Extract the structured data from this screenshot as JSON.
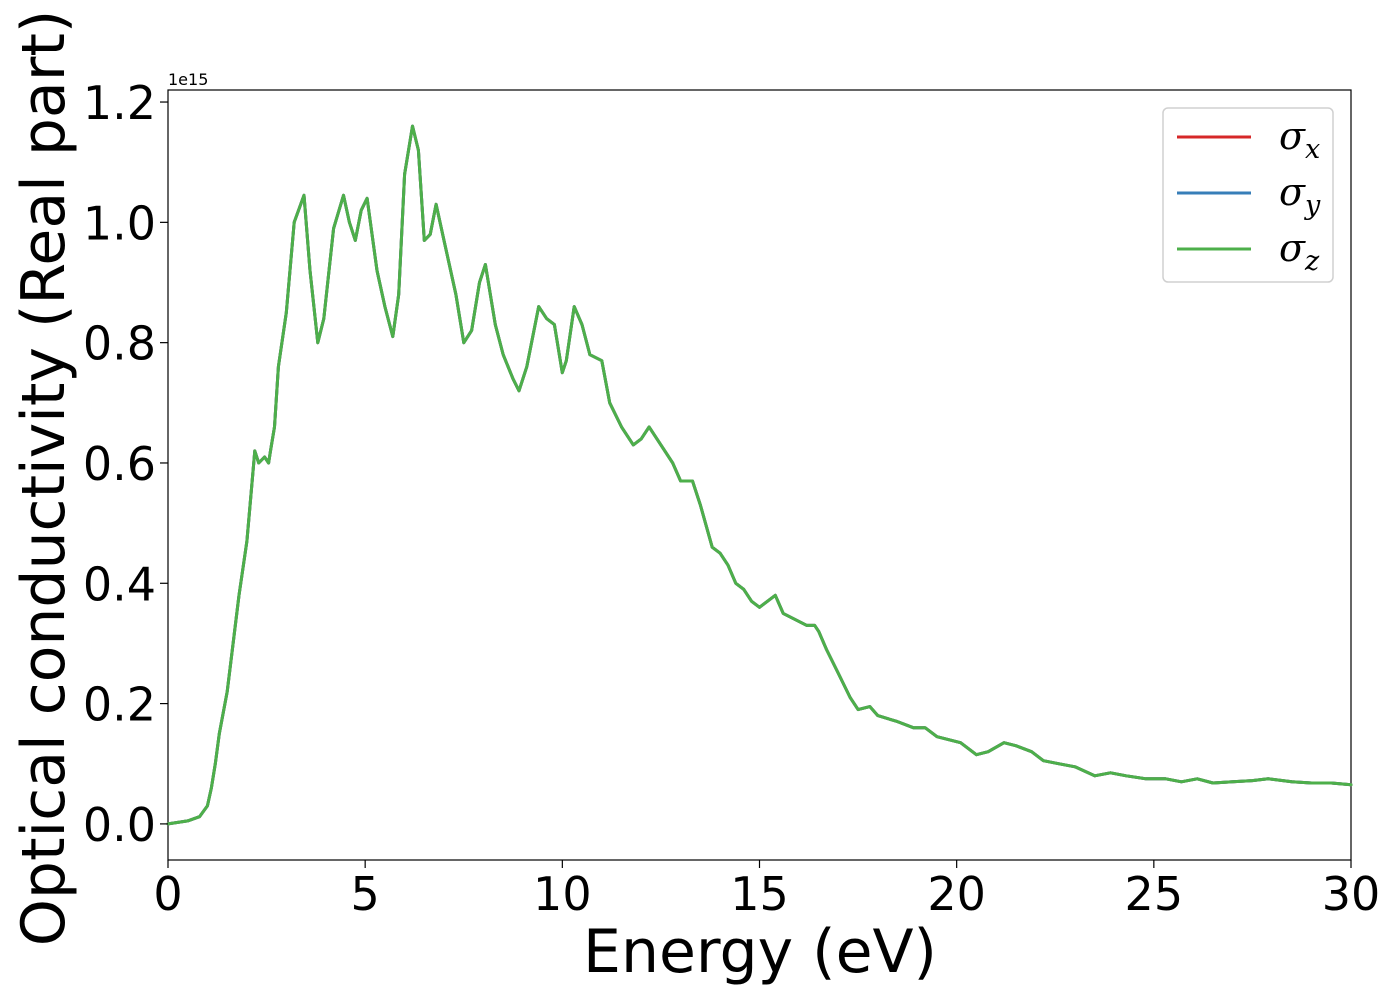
{
  "chart_data": {
    "type": "line",
    "xlabel": "Energy (eV)",
    "ylabel": "Optical conductivity (Real part)",
    "y_offset_text": "1e15",
    "xlim": [
      0,
      30
    ],
    "ylim": [
      -0.06,
      1.22
    ],
    "y_scale_factor": 1000000000000000.0,
    "xticks": [
      0,
      5,
      10,
      15,
      20,
      25,
      30
    ],
    "yticks": [
      0.0,
      0.2,
      0.4,
      0.6,
      0.8,
      1.0,
      1.2
    ],
    "grid": false,
    "legend_position": "top-right",
    "x": [
      0,
      0.5,
      0.8,
      1.0,
      1.1,
      1.2,
      1.3,
      1.5,
      1.8,
      2.0,
      2.2,
      2.3,
      2.45,
      2.55,
      2.6,
      2.7,
      2.8,
      3.0,
      3.2,
      3.45,
      3.6,
      3.8,
      3.95,
      4.2,
      4.45,
      4.6,
      4.75,
      4.9,
      5.05,
      5.3,
      5.5,
      5.7,
      5.85,
      6.0,
      6.2,
      6.35,
      6.5,
      6.65,
      6.8,
      7.0,
      7.3,
      7.5,
      7.7,
      7.9,
      8.05,
      8.3,
      8.5,
      8.75,
      8.9,
      9.1,
      9.4,
      9.6,
      9.8,
      10.0,
      10.1,
      10.3,
      10.5,
      10.7,
      11.0,
      11.2,
      11.5,
      11.8,
      12.0,
      12.2,
      12.5,
      12.8,
      13.0,
      13.3,
      13.5,
      13.8,
      14.0,
      14.2,
      14.4,
      14.6,
      14.8,
      15.0,
      15.2,
      15.4,
      15.6,
      15.9,
      16.2,
      16.4,
      16.5,
      16.7,
      17.0,
      17.3,
      17.5,
      17.8,
      18.0,
      18.5,
      18.9,
      19.2,
      19.5,
      19.8,
      20.1,
      20.5,
      20.8,
      21.2,
      21.5,
      21.9,
      22.2,
      22.6,
      23.0,
      23.5,
      23.9,
      24.3,
      24.8,
      25.3,
      25.7,
      26.1,
      26.5,
      27.0,
      27.5,
      27.9,
      28.5,
      29.0,
      29.5,
      30.0
    ],
    "series": [
      {
        "name": "σx",
        "color": "#d62728",
        "values": [
          0.0,
          0.005,
          0.012,
          0.03,
          0.06,
          0.1,
          0.15,
          0.22,
          0.38,
          0.47,
          0.62,
          0.6,
          0.61,
          0.6,
          0.62,
          0.66,
          0.76,
          0.85,
          1.0,
          1.045,
          0.92,
          0.8,
          0.84,
          0.99,
          1.045,
          1.0,
          0.97,
          1.02,
          1.04,
          0.92,
          0.86,
          0.81,
          0.88,
          1.08,
          1.16,
          1.12,
          0.97,
          0.98,
          1.03,
          0.97,
          0.88,
          0.8,
          0.82,
          0.9,
          0.93,
          0.83,
          0.78,
          0.74,
          0.72,
          0.76,
          0.86,
          0.84,
          0.83,
          0.75,
          0.77,
          0.86,
          0.83,
          0.78,
          0.77,
          0.7,
          0.66,
          0.63,
          0.64,
          0.66,
          0.63,
          0.6,
          0.57,
          0.57,
          0.53,
          0.46,
          0.45,
          0.43,
          0.4,
          0.39,
          0.37,
          0.36,
          0.37,
          0.38,
          0.35,
          0.34,
          0.33,
          0.33,
          0.32,
          0.29,
          0.25,
          0.21,
          0.19,
          0.195,
          0.18,
          0.17,
          0.16,
          0.16,
          0.145,
          0.14,
          0.135,
          0.115,
          0.12,
          0.135,
          0.13,
          0.12,
          0.105,
          0.1,
          0.095,
          0.08,
          0.085,
          0.08,
          0.075,
          0.075,
          0.07,
          0.075,
          0.068,
          0.07,
          0.072,
          0.075,
          0.07,
          0.068,
          0.068,
          0.065
        ]
      },
      {
        "name": "σy",
        "color": "#377eb8",
        "values": [
          0.0,
          0.005,
          0.012,
          0.03,
          0.06,
          0.1,
          0.15,
          0.22,
          0.38,
          0.47,
          0.62,
          0.6,
          0.61,
          0.6,
          0.62,
          0.66,
          0.76,
          0.85,
          1.0,
          1.045,
          0.92,
          0.8,
          0.84,
          0.99,
          1.045,
          1.0,
          0.97,
          1.02,
          1.04,
          0.92,
          0.86,
          0.81,
          0.88,
          1.08,
          1.16,
          1.12,
          0.97,
          0.98,
          1.03,
          0.97,
          0.88,
          0.8,
          0.82,
          0.9,
          0.93,
          0.83,
          0.78,
          0.74,
          0.72,
          0.76,
          0.86,
          0.84,
          0.83,
          0.75,
          0.77,
          0.86,
          0.83,
          0.78,
          0.77,
          0.7,
          0.66,
          0.63,
          0.64,
          0.66,
          0.63,
          0.6,
          0.57,
          0.57,
          0.53,
          0.46,
          0.45,
          0.43,
          0.4,
          0.39,
          0.37,
          0.36,
          0.37,
          0.38,
          0.35,
          0.34,
          0.33,
          0.33,
          0.32,
          0.29,
          0.25,
          0.21,
          0.19,
          0.195,
          0.18,
          0.17,
          0.16,
          0.16,
          0.145,
          0.14,
          0.135,
          0.115,
          0.12,
          0.135,
          0.13,
          0.12,
          0.105,
          0.1,
          0.095,
          0.08,
          0.085,
          0.08,
          0.075,
          0.075,
          0.07,
          0.075,
          0.068,
          0.07,
          0.072,
          0.075,
          0.07,
          0.068,
          0.068,
          0.065
        ]
      },
      {
        "name": "σz",
        "color": "#4daf4a",
        "values": [
          0.0,
          0.005,
          0.012,
          0.03,
          0.06,
          0.1,
          0.15,
          0.22,
          0.38,
          0.47,
          0.62,
          0.6,
          0.61,
          0.6,
          0.62,
          0.66,
          0.76,
          0.85,
          1.0,
          1.045,
          0.92,
          0.8,
          0.84,
          0.99,
          1.045,
          1.0,
          0.97,
          1.02,
          1.04,
          0.92,
          0.86,
          0.81,
          0.88,
          1.08,
          1.16,
          1.12,
          0.97,
          0.98,
          1.03,
          0.97,
          0.88,
          0.8,
          0.82,
          0.9,
          0.93,
          0.83,
          0.78,
          0.74,
          0.72,
          0.76,
          0.86,
          0.84,
          0.83,
          0.75,
          0.77,
          0.86,
          0.83,
          0.78,
          0.77,
          0.7,
          0.66,
          0.63,
          0.64,
          0.66,
          0.63,
          0.6,
          0.57,
          0.57,
          0.53,
          0.46,
          0.45,
          0.43,
          0.4,
          0.39,
          0.37,
          0.36,
          0.37,
          0.38,
          0.35,
          0.34,
          0.33,
          0.33,
          0.32,
          0.29,
          0.25,
          0.21,
          0.19,
          0.195,
          0.18,
          0.17,
          0.16,
          0.16,
          0.145,
          0.14,
          0.135,
          0.115,
          0.12,
          0.135,
          0.13,
          0.12,
          0.105,
          0.1,
          0.095,
          0.08,
          0.085,
          0.08,
          0.075,
          0.075,
          0.07,
          0.075,
          0.068,
          0.07,
          0.072,
          0.075,
          0.07,
          0.068,
          0.068,
          0.065
        ]
      }
    ],
    "legend": [
      {
        "symbol": "σ",
        "sub": "x",
        "color": "#d62728"
      },
      {
        "symbol": "σ",
        "sub": "y",
        "color": "#377eb8"
      },
      {
        "symbol": "σ",
        "sub": "z",
        "color": "#4daf4a"
      }
    ]
  }
}
